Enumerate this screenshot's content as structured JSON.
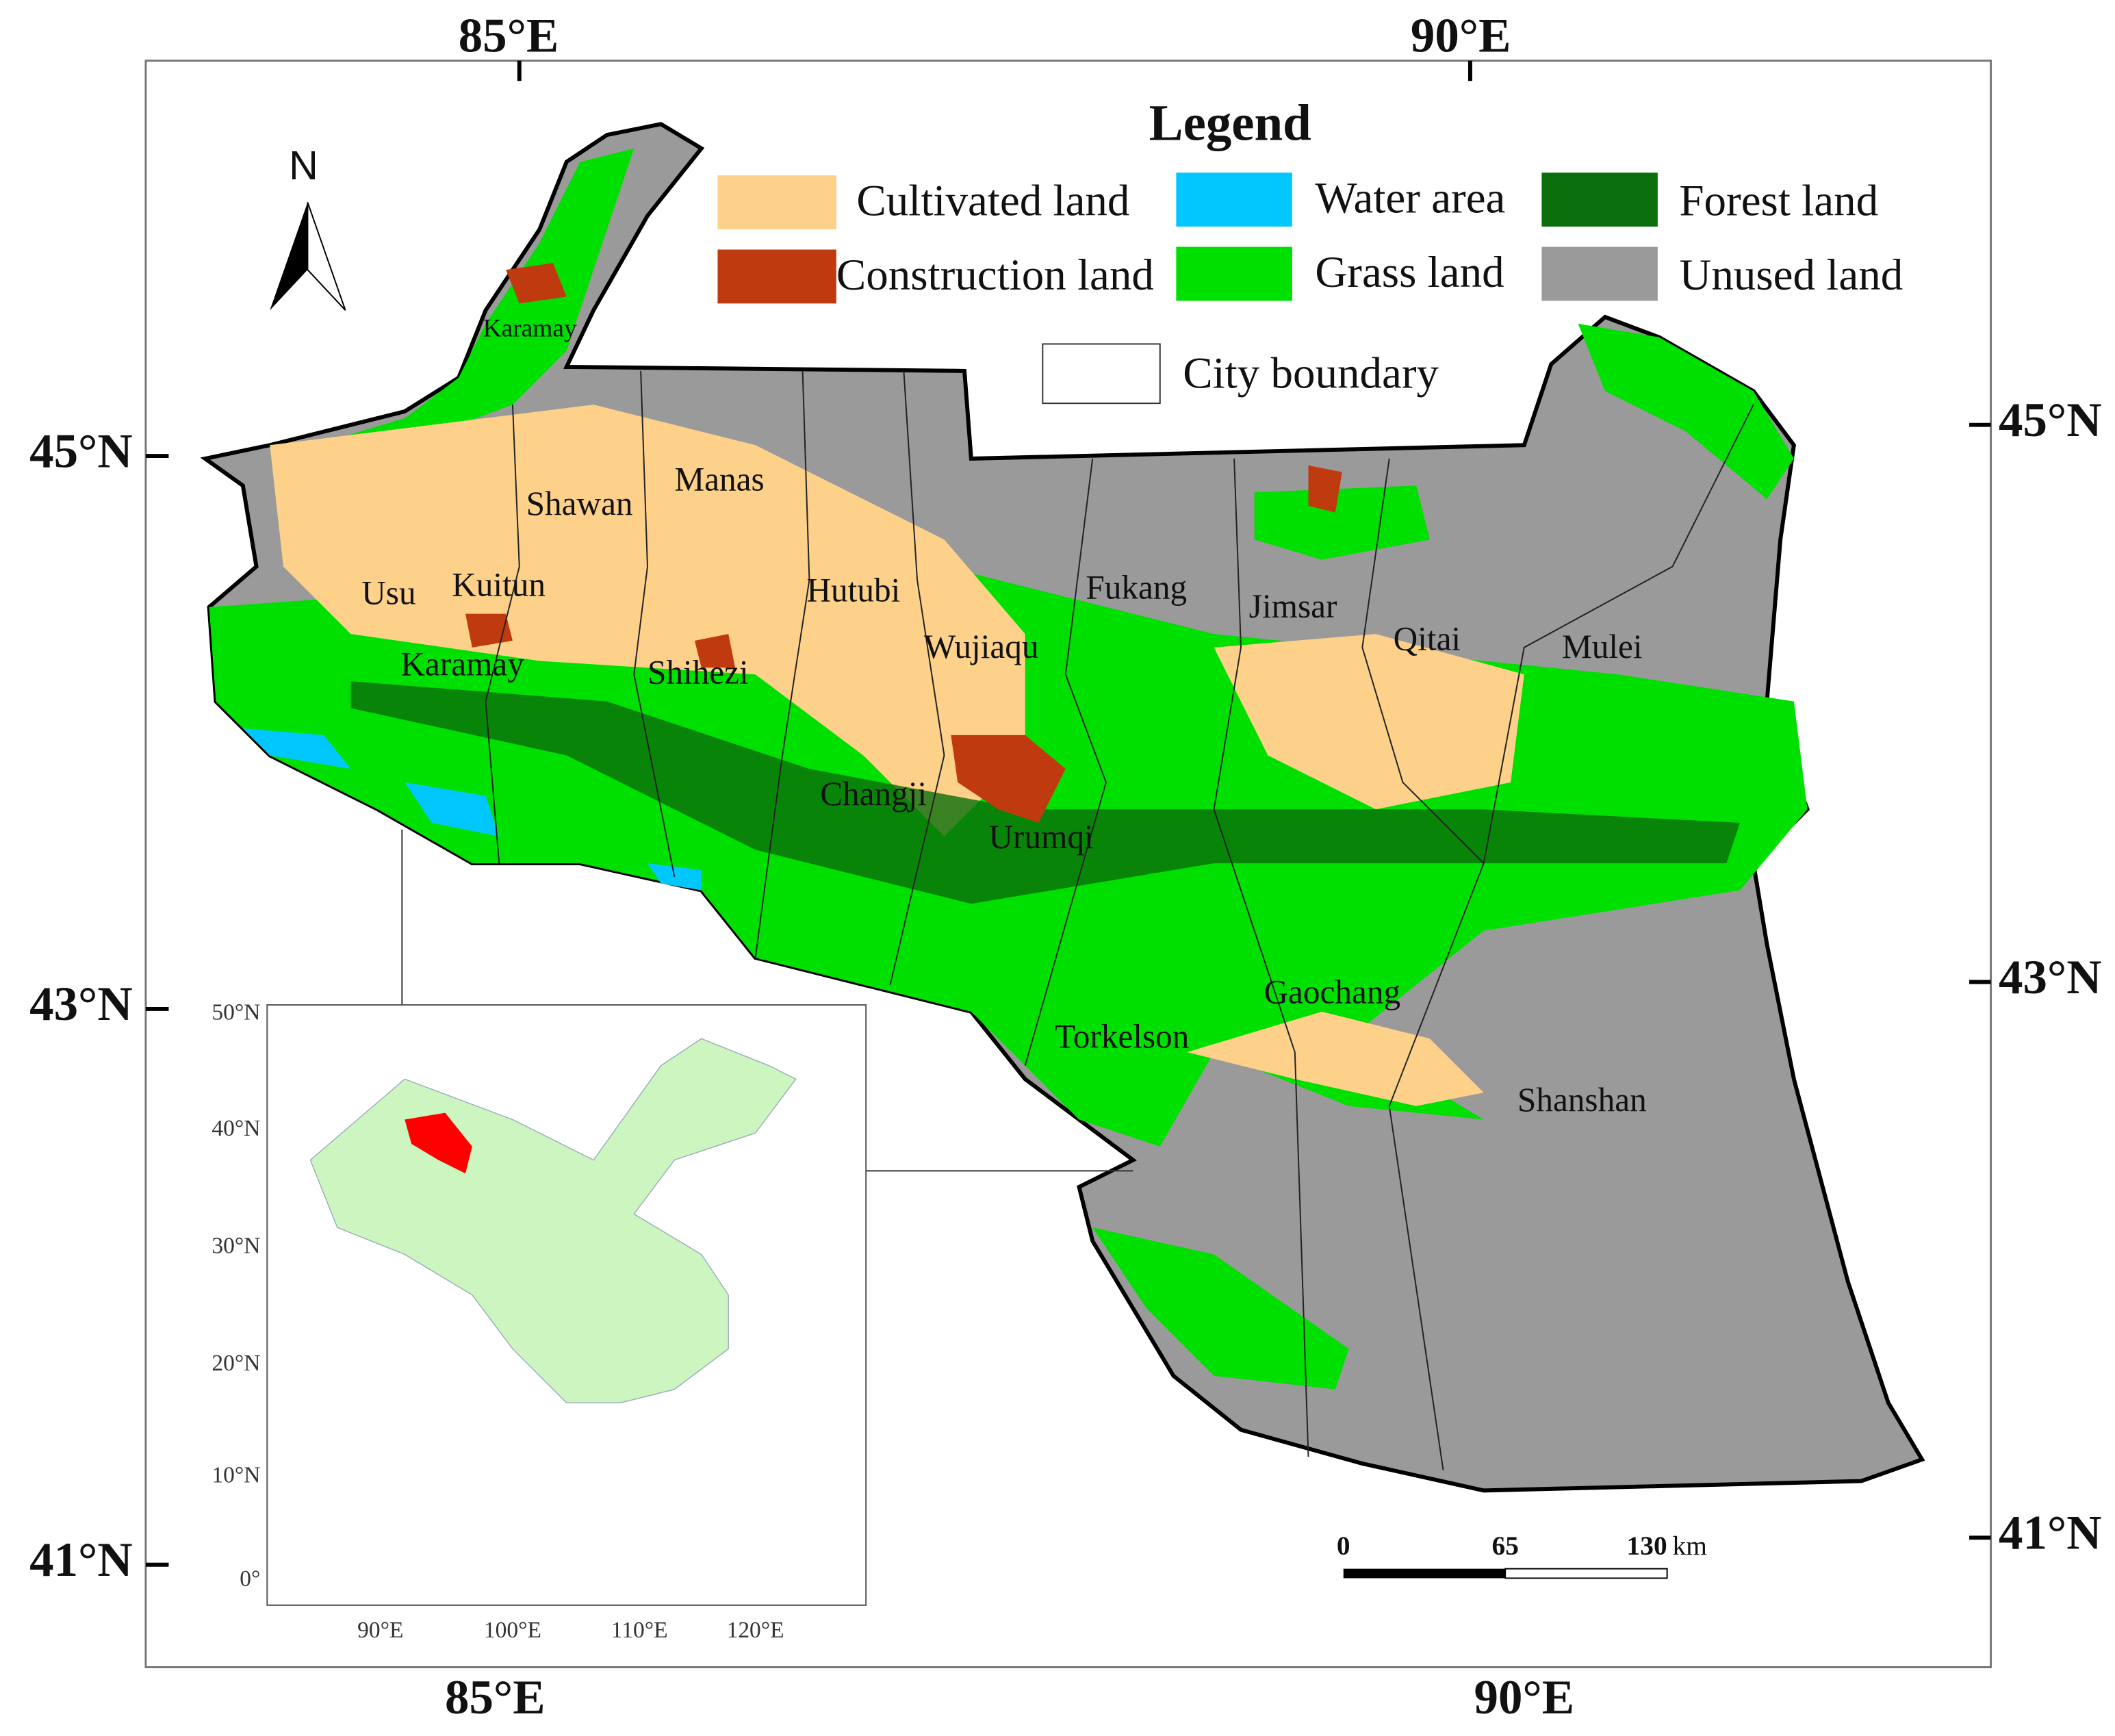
{
  "axes": {
    "top": [
      "85°E",
      "90°E"
    ],
    "bottom": [
      "85°E",
      "90°E"
    ],
    "left": [
      "45°N",
      "43°N",
      "41°N"
    ],
    "right": [
      "45°N",
      "43°N",
      "41°N"
    ]
  },
  "north": "N",
  "legend": {
    "title": "Legend",
    "items": [
      {
        "label": "Cultivated land",
        "color": "#fdd18a"
      },
      {
        "label": "Water area",
        "color": "#00c8ff"
      },
      {
        "label": "Forest land",
        "color": "#0a6e0a"
      },
      {
        "label": "Construction land",
        "color": "#c03a10"
      },
      {
        "label": "Grass land",
        "color": "#00e000"
      },
      {
        "label": "Unused land",
        "color": "#9a9a9a"
      }
    ],
    "boundary": "City boundary"
  },
  "cities": [
    "Karamay",
    "Shawan",
    "Manas",
    "Usu",
    "Kuitun",
    "Hutubi",
    "Fukang",
    "Jimsar",
    "Qitai",
    "Mulei",
    "Karamay",
    "Shihezi",
    "Wujiaqu",
    "Changji",
    "Urumqi",
    "Gaochang",
    "Torkelson",
    "Shanshan"
  ],
  "scale_bar": {
    "ticks": [
      0,
      65,
      130
    ],
    "unit": "km"
  },
  "inset": {
    "lat": [
      "50°N",
      "40°N",
      "30°N",
      "20°N",
      "10°N",
      "0°"
    ],
    "lon": [
      "90°E",
      "100°E",
      "110°E",
      "120°E"
    ]
  }
}
